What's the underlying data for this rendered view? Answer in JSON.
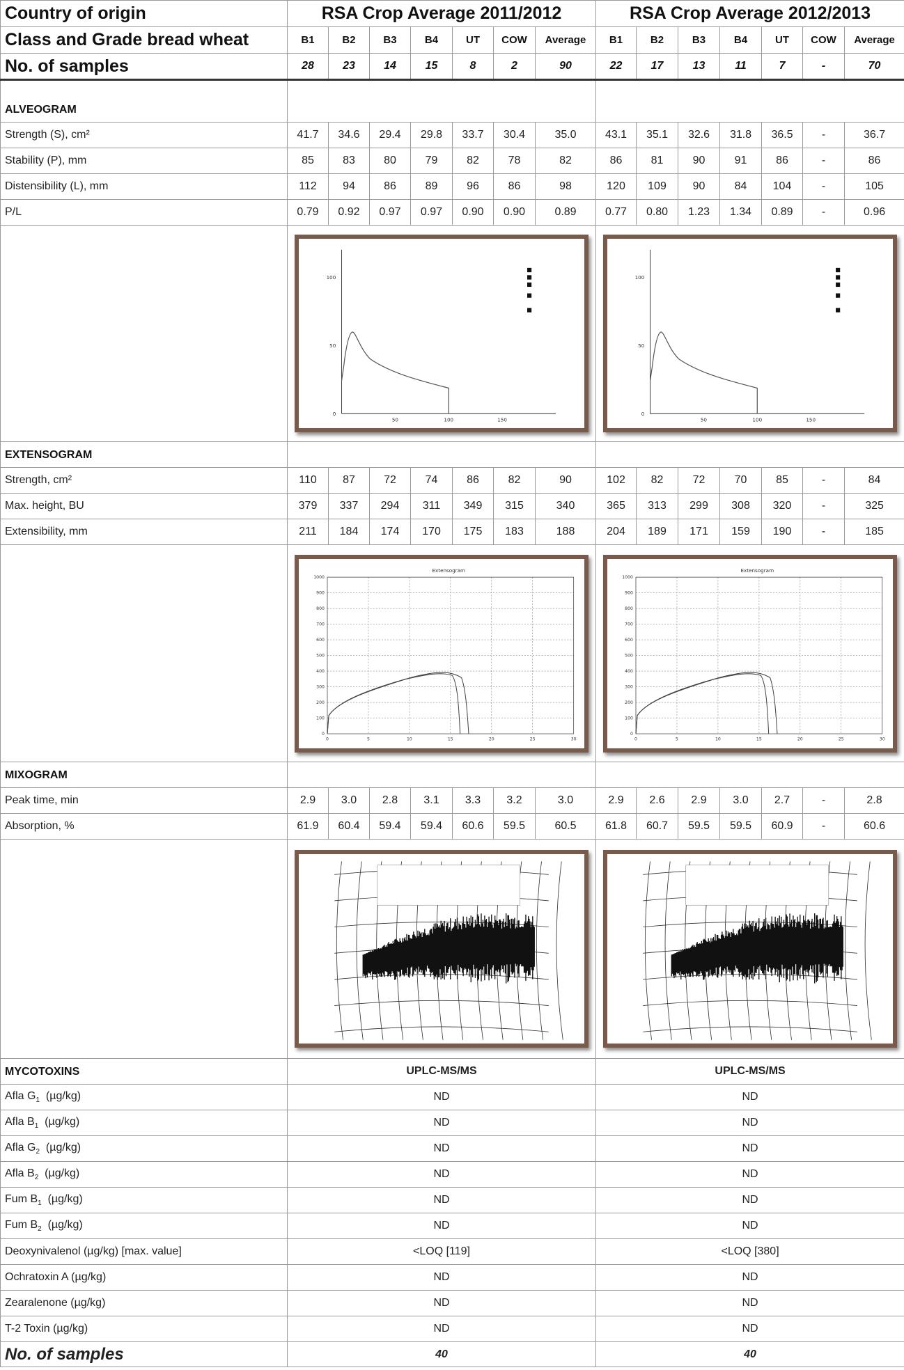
{
  "header": {
    "country_label": "Country of origin",
    "class_label": "Class and Grade bread wheat",
    "samples_label": "No. of samples",
    "periods": [
      {
        "title": "RSA Crop Average 2011/2012",
        "grades": [
          "B1",
          "B2",
          "B3",
          "B4",
          "UT",
          "COW",
          "Average"
        ],
        "samples": [
          "28",
          "23",
          "14",
          "15",
          "8",
          "2",
          "90"
        ]
      },
      {
        "title": "RSA Crop Average 2012/2013",
        "grades": [
          "B1",
          "B2",
          "B3",
          "B4",
          "UT",
          "COW",
          "Average"
        ],
        "samples": [
          "22",
          "17",
          "13",
          "11",
          "7",
          "-",
          "70"
        ]
      }
    ]
  },
  "sections": [
    {
      "title": "ALVEOGRAM",
      "graph": "alveogram",
      "rows": [
        {
          "label": "Strength (S), cm²",
          "values": [
            [
              "41.7",
              "34.6",
              "29.4",
              "29.8",
              "33.7",
              "30.4",
              "35.0"
            ],
            [
              "43.1",
              "35.1",
              "32.6",
              "31.8",
              "36.5",
              "-",
              "36.7"
            ]
          ]
        },
        {
          "label": "Stability (P), mm",
          "values": [
            [
              "85",
              "83",
              "80",
              "79",
              "82",
              "78",
              "82"
            ],
            [
              "86",
              "81",
              "90",
              "91",
              "86",
              "-",
              "86"
            ]
          ]
        },
        {
          "label": "Distensibility (L), mm",
          "values": [
            [
              "112",
              "94",
              "86",
              "89",
              "96",
              "86",
              "98"
            ],
            [
              "120",
              "109",
              "90",
              "84",
              "104",
              "-",
              "105"
            ]
          ]
        },
        {
          "label": "P/L",
          "values": [
            [
              "0.79",
              "0.92",
              "0.97",
              "0.97",
              "0.90",
              "0.90",
              "0.89"
            ],
            [
              "0.77",
              "0.80",
              "1.23",
              "1.34",
              "0.89",
              "-",
              "0.96"
            ]
          ]
        }
      ]
    },
    {
      "title": "EXTENSOGRAM",
      "graph": "extensogram",
      "rows": [
        {
          "label": "Strength, cm²",
          "values": [
            [
              "110",
              "87",
              "72",
              "74",
              "86",
              "82",
              "90"
            ],
            [
              "102",
              "82",
              "72",
              "70",
              "85",
              "-",
              "84"
            ]
          ]
        },
        {
          "label": "Max. height, BU",
          "values": [
            [
              "379",
              "337",
              "294",
              "311",
              "349",
              "315",
              "340"
            ],
            [
              "365",
              "313",
              "299",
              "308",
              "320",
              "-",
              "325"
            ]
          ]
        },
        {
          "label": "Extensibility, mm",
          "values": [
            [
              "211",
              "184",
              "174",
              "170",
              "175",
              "183",
              "188"
            ],
            [
              "204",
              "189",
              "171",
              "159",
              "190",
              "-",
              "185"
            ]
          ]
        }
      ]
    },
    {
      "title": "MIXOGRAM",
      "graph": "mixogram",
      "rows": [
        {
          "label": "Peak time, min",
          "values": [
            [
              "2.9",
              "3.0",
              "2.8",
              "3.1",
              "3.3",
              "3.2",
              "3.0"
            ],
            [
              "2.9",
              "2.6",
              "2.9",
              "3.0",
              "2.7",
              "-",
              "2.8"
            ]
          ]
        },
        {
          "label": "Absorption, %",
          "values": [
            [
              "61.9",
              "60.4",
              "59.4",
              "59.4",
              "60.6",
              "59.5",
              "60.5"
            ],
            [
              "61.8",
              "60.7",
              "59.5",
              "59.5",
              "60.9",
              "-",
              "60.6"
            ]
          ]
        }
      ]
    }
  ],
  "graphs": {
    "alveogram": {
      "yticks": [
        0,
        50,
        100
      ],
      "xticks": [
        50,
        100,
        150
      ]
    },
    "extensogram": {
      "title": "Extensogram",
      "yticks": [
        0,
        100,
        200,
        300,
        400,
        500,
        600,
        700,
        800,
        900,
        1000
      ],
      "xticks": [
        0,
        5,
        10,
        15,
        20,
        25,
        30
      ]
    }
  },
  "mycotoxins": {
    "title": "MYCOTOXINS",
    "method": [
      "UPLC-MS/MS",
      "UPLC-MS/MS"
    ],
    "rows": [
      {
        "name": "Afla G",
        "sub": "1",
        "unit": "(µg/kg)",
        "values": [
          "ND",
          "ND"
        ]
      },
      {
        "name": "Afla B",
        "sub": "1",
        "unit": "(µg/kg)",
        "values": [
          "ND",
          "ND"
        ]
      },
      {
        "name": "Afla G",
        "sub": "2",
        "unit": "(µg/kg)",
        "values": [
          "ND",
          "ND"
        ]
      },
      {
        "name": "Afla B",
        "sub": "2",
        "unit": "(µg/kg)",
        "values": [
          "ND",
          "ND"
        ]
      },
      {
        "name": "Fum B",
        "sub": "1",
        "unit": "(µg/kg)",
        "values": [
          "ND",
          "ND"
        ]
      },
      {
        "name": "Fum B",
        "sub": "2",
        "unit": "(µg/kg)",
        "values": [
          "ND",
          "ND"
        ]
      },
      {
        "name": "Deoxynivalenol (µg/kg) [max. value]",
        "values": [
          "<LOQ [119]",
          "<LOQ [380]"
        ]
      },
      {
        "name": "Ochratoxin A (µg/kg)",
        "values": [
          "ND",
          "ND"
        ]
      },
      {
        "name": "Zearalenone (µg/kg)",
        "values": [
          "ND",
          "ND"
        ]
      },
      {
        "name": "T-2 Toxin (µg/kg)",
        "values": [
          "ND",
          "ND"
        ]
      }
    ],
    "samples_label": "No. of samples",
    "samples": [
      "40",
      "40"
    ]
  }
}
